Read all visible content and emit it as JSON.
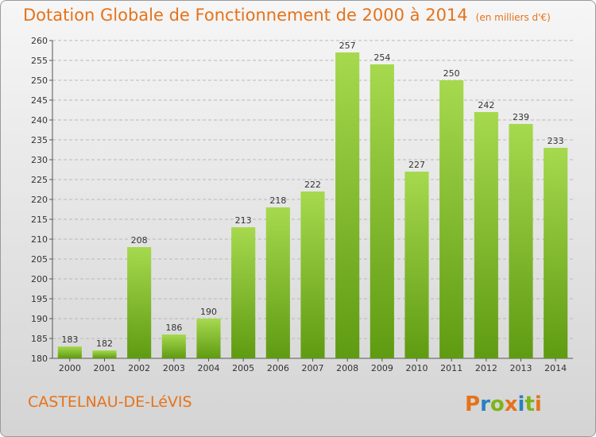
{
  "header": {
    "title": "Dotation Globale de Fonctionnement de 2000 à 2014",
    "unit": "(en milliers d'€)"
  },
  "footer": {
    "commune": "CASTELNAU-DE-LéVIS",
    "logo_text": "Proxiti"
  },
  "colors": {
    "title": "#e5731b",
    "bar_light": "#a6d94e",
    "bar_dark": "#5f9b12",
    "logo_letters": [
      "#e5731b",
      "#2b7fc1",
      "#7cb518",
      "#e5731b",
      "#2b7fc1",
      "#7cb518",
      "#e5731b"
    ]
  },
  "chart_data": {
    "type": "bar",
    "categories": [
      "2000",
      "2001",
      "2002",
      "2003",
      "2004",
      "2005",
      "2006",
      "2007",
      "2008",
      "2009",
      "2010",
      "2011",
      "2012",
      "2013",
      "2014"
    ],
    "values": [
      183,
      182,
      208,
      186,
      190,
      213,
      218,
      222,
      257,
      254,
      227,
      250,
      242,
      239,
      233
    ],
    "title": "Dotation Globale de Fonctionnement de 2000 à 2014",
    "xlabel": "",
    "ylabel": "",
    "ylim": [
      180,
      260
    ],
    "yticks": [
      180,
      185,
      190,
      195,
      200,
      205,
      210,
      215,
      220,
      225,
      230,
      235,
      240,
      245,
      250,
      255,
      260
    ],
    "grid": true,
    "data_labels": true
  }
}
